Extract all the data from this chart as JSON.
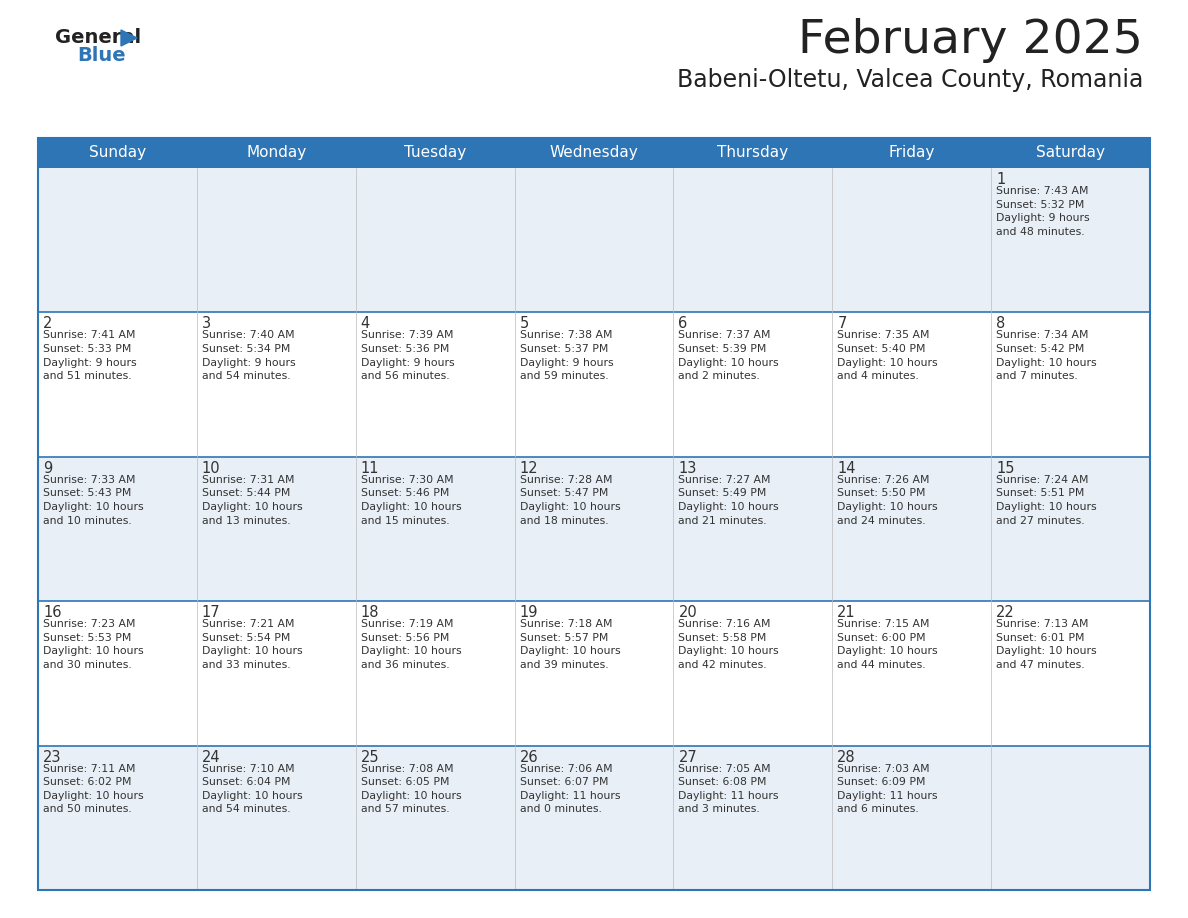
{
  "title": "February 2025",
  "subtitle": "Babeni-Oltetu, Valcea County, Romania",
  "header_bg": "#2E75B6",
  "header_text_color": "#FFFFFF",
  "cell_bg_odd": "#E9EFF7",
  "cell_bg_even": "#FFFFFF",
  "border_color": "#2E75B6",
  "text_color": "#333333",
  "days_of_week": [
    "Sunday",
    "Monday",
    "Tuesday",
    "Wednesday",
    "Thursday",
    "Friday",
    "Saturday"
  ],
  "calendar": [
    [
      {
        "day": null,
        "info": null
      },
      {
        "day": null,
        "info": null
      },
      {
        "day": null,
        "info": null
      },
      {
        "day": null,
        "info": null
      },
      {
        "day": null,
        "info": null
      },
      {
        "day": null,
        "info": null
      },
      {
        "day": 1,
        "info": "Sunrise: 7:43 AM\nSunset: 5:32 PM\nDaylight: 9 hours\nand 48 minutes."
      }
    ],
    [
      {
        "day": 2,
        "info": "Sunrise: 7:41 AM\nSunset: 5:33 PM\nDaylight: 9 hours\nand 51 minutes."
      },
      {
        "day": 3,
        "info": "Sunrise: 7:40 AM\nSunset: 5:34 PM\nDaylight: 9 hours\nand 54 minutes."
      },
      {
        "day": 4,
        "info": "Sunrise: 7:39 AM\nSunset: 5:36 PM\nDaylight: 9 hours\nand 56 minutes."
      },
      {
        "day": 5,
        "info": "Sunrise: 7:38 AM\nSunset: 5:37 PM\nDaylight: 9 hours\nand 59 minutes."
      },
      {
        "day": 6,
        "info": "Sunrise: 7:37 AM\nSunset: 5:39 PM\nDaylight: 10 hours\nand 2 minutes."
      },
      {
        "day": 7,
        "info": "Sunrise: 7:35 AM\nSunset: 5:40 PM\nDaylight: 10 hours\nand 4 minutes."
      },
      {
        "day": 8,
        "info": "Sunrise: 7:34 AM\nSunset: 5:42 PM\nDaylight: 10 hours\nand 7 minutes."
      }
    ],
    [
      {
        "day": 9,
        "info": "Sunrise: 7:33 AM\nSunset: 5:43 PM\nDaylight: 10 hours\nand 10 minutes."
      },
      {
        "day": 10,
        "info": "Sunrise: 7:31 AM\nSunset: 5:44 PM\nDaylight: 10 hours\nand 13 minutes."
      },
      {
        "day": 11,
        "info": "Sunrise: 7:30 AM\nSunset: 5:46 PM\nDaylight: 10 hours\nand 15 minutes."
      },
      {
        "day": 12,
        "info": "Sunrise: 7:28 AM\nSunset: 5:47 PM\nDaylight: 10 hours\nand 18 minutes."
      },
      {
        "day": 13,
        "info": "Sunrise: 7:27 AM\nSunset: 5:49 PM\nDaylight: 10 hours\nand 21 minutes."
      },
      {
        "day": 14,
        "info": "Sunrise: 7:26 AM\nSunset: 5:50 PM\nDaylight: 10 hours\nand 24 minutes."
      },
      {
        "day": 15,
        "info": "Sunrise: 7:24 AM\nSunset: 5:51 PM\nDaylight: 10 hours\nand 27 minutes."
      }
    ],
    [
      {
        "day": 16,
        "info": "Sunrise: 7:23 AM\nSunset: 5:53 PM\nDaylight: 10 hours\nand 30 minutes."
      },
      {
        "day": 17,
        "info": "Sunrise: 7:21 AM\nSunset: 5:54 PM\nDaylight: 10 hours\nand 33 minutes."
      },
      {
        "day": 18,
        "info": "Sunrise: 7:19 AM\nSunset: 5:56 PM\nDaylight: 10 hours\nand 36 minutes."
      },
      {
        "day": 19,
        "info": "Sunrise: 7:18 AM\nSunset: 5:57 PM\nDaylight: 10 hours\nand 39 minutes."
      },
      {
        "day": 20,
        "info": "Sunrise: 7:16 AM\nSunset: 5:58 PM\nDaylight: 10 hours\nand 42 minutes."
      },
      {
        "day": 21,
        "info": "Sunrise: 7:15 AM\nSunset: 6:00 PM\nDaylight: 10 hours\nand 44 minutes."
      },
      {
        "day": 22,
        "info": "Sunrise: 7:13 AM\nSunset: 6:01 PM\nDaylight: 10 hours\nand 47 minutes."
      }
    ],
    [
      {
        "day": 23,
        "info": "Sunrise: 7:11 AM\nSunset: 6:02 PM\nDaylight: 10 hours\nand 50 minutes."
      },
      {
        "day": 24,
        "info": "Sunrise: 7:10 AM\nSunset: 6:04 PM\nDaylight: 10 hours\nand 54 minutes."
      },
      {
        "day": 25,
        "info": "Sunrise: 7:08 AM\nSunset: 6:05 PM\nDaylight: 10 hours\nand 57 minutes."
      },
      {
        "day": 26,
        "info": "Sunrise: 7:06 AM\nSunset: 6:07 PM\nDaylight: 11 hours\nand 0 minutes."
      },
      {
        "day": 27,
        "info": "Sunrise: 7:05 AM\nSunset: 6:08 PM\nDaylight: 11 hours\nand 3 minutes."
      },
      {
        "day": 28,
        "info": "Sunrise: 7:03 AM\nSunset: 6:09 PM\nDaylight: 11 hours\nand 6 minutes."
      },
      {
        "day": null,
        "info": null
      }
    ]
  ]
}
